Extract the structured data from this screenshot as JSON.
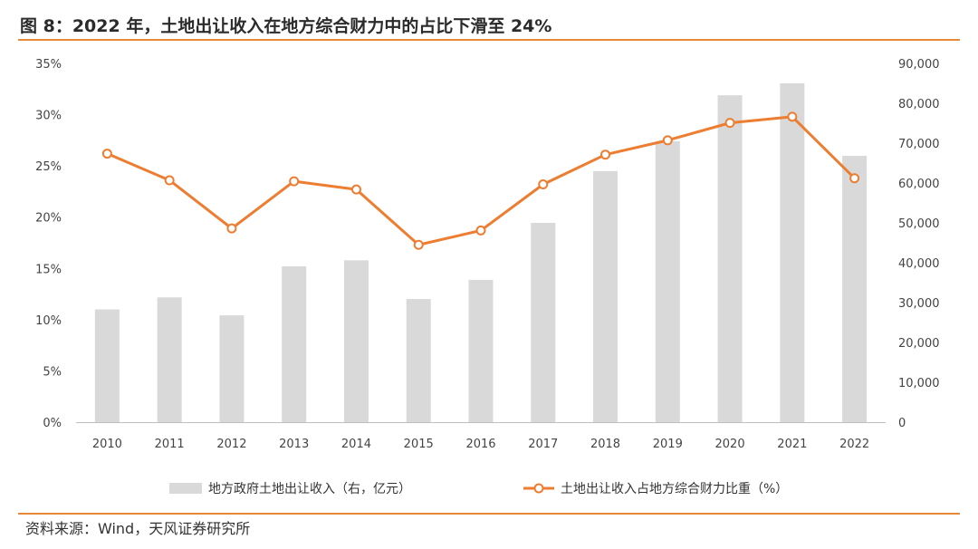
{
  "title": "图 8：2022 年，土地出让收入在地方综合财力中的占比下滑至 24%",
  "source": "资料来源：Wind，天风证券研究所",
  "colors": {
    "bar": "#D9D9D9",
    "line": "#ED7D31",
    "rule": "#E8893A"
  },
  "chart_data": {
    "type": "bar",
    "categories": [
      "2010",
      "2011",
      "2012",
      "2013",
      "2014",
      "2015",
      "2016",
      "2017",
      "2018",
      "2019",
      "2020",
      "2021",
      "2022"
    ],
    "series": [
      {
        "name": "地方政府土地出让收入（右，亿元）",
        "type": "bar",
        "axis": "right",
        "values": [
          28300,
          31300,
          26800,
          39100,
          40600,
          30900,
          35700,
          50000,
          63000,
          70500,
          82000,
          85000,
          66800
        ]
      },
      {
        "name": "土地出让收入占地方综合财力比重（%）",
        "type": "line",
        "axis": "left",
        "values": [
          26.2,
          23.6,
          18.9,
          23.5,
          22.7,
          17.3,
          18.7,
          23.2,
          26.1,
          27.5,
          29.2,
          29.8,
          23.8
        ]
      }
    ],
    "left_axis": {
      "ticks": [
        "0%",
        "5%",
        "10%",
        "15%",
        "20%",
        "25%",
        "30%",
        "35%"
      ],
      "ylim": [
        0,
        35
      ]
    },
    "right_axis": {
      "ticks": [
        "0",
        "10,000",
        "20,000",
        "30,000",
        "40,000",
        "50,000",
        "60,000",
        "70,000",
        "80,000",
        "90,000"
      ],
      "ylim": [
        0,
        90000
      ]
    },
    "legend": "bottom",
    "grid": false
  }
}
